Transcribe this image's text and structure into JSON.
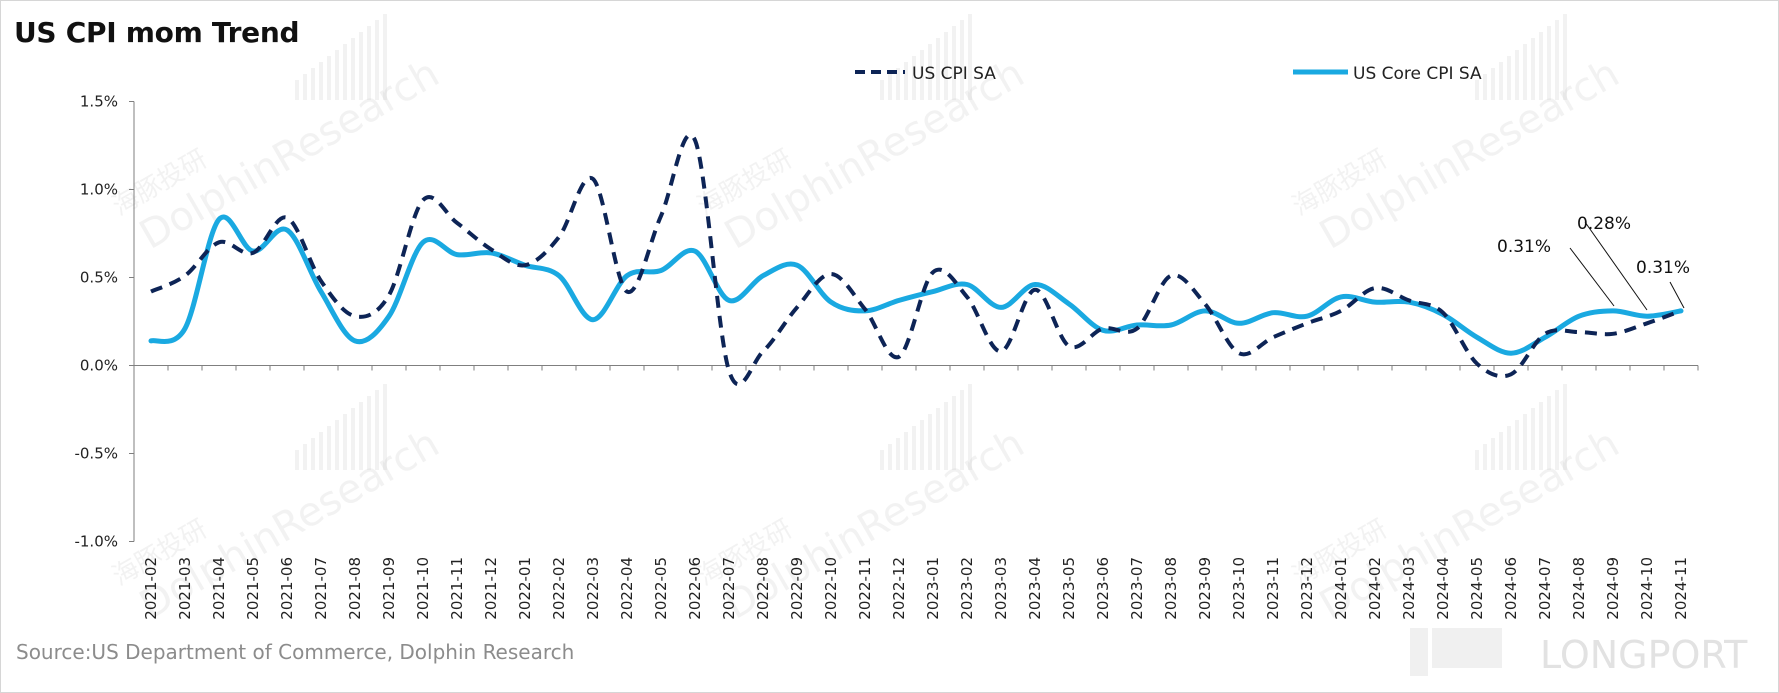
{
  "title": "US CPI mom Trend",
  "source": "Source:US Department of Commerce, Dolphin Research",
  "watermark": {
    "brand": "DolphinResearch",
    "cn": "海豚投研",
    "corner": "LONGPORT"
  },
  "colors": {
    "cpi": "#0d2456",
    "core": "#1aa9e1",
    "axis": "#7f7f7f"
  },
  "chart_data": {
    "type": "line",
    "title": "US CPI mom Trend",
    "ylim": [
      -1.0,
      1.5
    ],
    "ytick_step": 0.5,
    "grid": false,
    "legend_position": "top",
    "categories": [
      "2021-02",
      "2021-03",
      "2021-04",
      "2021-05",
      "2021-06",
      "2021-07",
      "2021-08",
      "2021-09",
      "2021-10",
      "2021-11",
      "2021-12",
      "2022-01",
      "2022-02",
      "2022-03",
      "2022-04",
      "2022-05",
      "2022-06",
      "2022-07",
      "2022-08",
      "2022-09",
      "2022-10",
      "2022-11",
      "2022-12",
      "2023-01",
      "2023-02",
      "2023-03",
      "2023-04",
      "2023-05",
      "2023-06",
      "2023-07",
      "2023-08",
      "2023-09",
      "2023-10",
      "2023-11",
      "2023-12",
      "2024-01",
      "2024-02",
      "2024-03",
      "2024-04",
      "2024-05",
      "2024-06",
      "2024-07",
      "2024-08",
      "2024-09",
      "2024-10",
      "2024-11"
    ],
    "series": [
      {
        "name": "US CPI SA",
        "style": "dashed",
        "color": "#0d2456",
        "values": [
          0.42,
          0.51,
          0.7,
          0.64,
          0.84,
          0.48,
          0.28,
          0.4,
          0.94,
          0.81,
          0.66,
          0.57,
          0.73,
          1.06,
          0.42,
          0.85,
          1.28,
          -0.03,
          0.08,
          0.33,
          0.52,
          0.32,
          0.05,
          0.53,
          0.39,
          0.08,
          0.43,
          0.11,
          0.21,
          0.21,
          0.51,
          0.35,
          0.07,
          0.16,
          0.24,
          0.31,
          0.44,
          0.37,
          0.3,
          0.01,
          -0.05,
          0.18,
          0.19,
          0.18,
          0.24,
          0.31
        ]
      },
      {
        "name": "US Core CPI SA",
        "style": "solid",
        "color": "#1aa9e1",
        "values": [
          0.14,
          0.21,
          0.83,
          0.65,
          0.77,
          0.42,
          0.14,
          0.28,
          0.7,
          0.63,
          0.64,
          0.57,
          0.51,
          0.26,
          0.51,
          0.54,
          0.65,
          0.37,
          0.51,
          0.57,
          0.36,
          0.31,
          0.37,
          0.42,
          0.46,
          0.33,
          0.46,
          0.35,
          0.2,
          0.23,
          0.23,
          0.31,
          0.24,
          0.3,
          0.28,
          0.39,
          0.36,
          0.36,
          0.29,
          0.16,
          0.07,
          0.16,
          0.28,
          0.31,
          0.28,
          0.31
        ]
      }
    ],
    "annotations": [
      "0.31%",
      "0.28%",
      "0.31%"
    ]
  }
}
